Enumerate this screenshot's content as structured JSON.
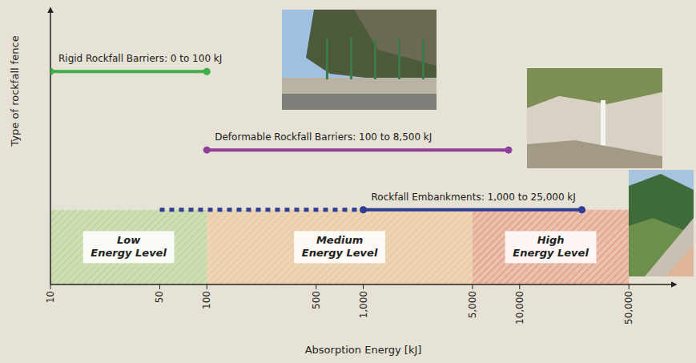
{
  "chart_data": {
    "type": "range",
    "log": "x",
    "x_label": "Absorption Energy [kJ]",
    "y_label": "Type of rockfall fence",
    "xlim": [
      10,
      100000
    ],
    "xticks": [
      10,
      50,
      100,
      500,
      {
        "value": 1000,
        "label": "1,000"
      },
      {
        "value": 5000,
        "label": "5,000"
      },
      {
        "value": 10000,
        "label": "10,000"
      },
      {
        "value": 50000,
        "label": "50,000"
      }
    ],
    "tick_labels": "x",
    "marker": "circle",
    "series": [
      {
        "name": "Rigid Rockfall Barriers: 0 to 100 kJ",
        "color": "#3fae49",
        "values": [
          10,
          100
        ]
      },
      {
        "name": "Deformable Rockfall Barriers: 100 to 8,500 kJ",
        "color": "#8e3f9c",
        "values": [
          100,
          8500
        ]
      },
      {
        "name": "Rockfall Embankments: 1,000 to 25,000 kJ",
        "color": "#2c3d93",
        "values": [
          1000,
          25000
        ],
        "extension": {
          "values": [
            50,
            1000
          ],
          "line_style": "dotted"
        }
      }
    ],
    "zones": [
      {
        "label": "Low Energy Level",
        "values": [
          10,
          100
        ],
        "color": "#a9d27e"
      },
      {
        "label": "Medium Energy Level",
        "values": [
          100,
          5000
        ],
        "color": "#f1bd83"
      },
      {
        "label": "High Energy Level",
        "values": [
          5000,
          50000
        ],
        "color": "#e98468"
      }
    ]
  }
}
